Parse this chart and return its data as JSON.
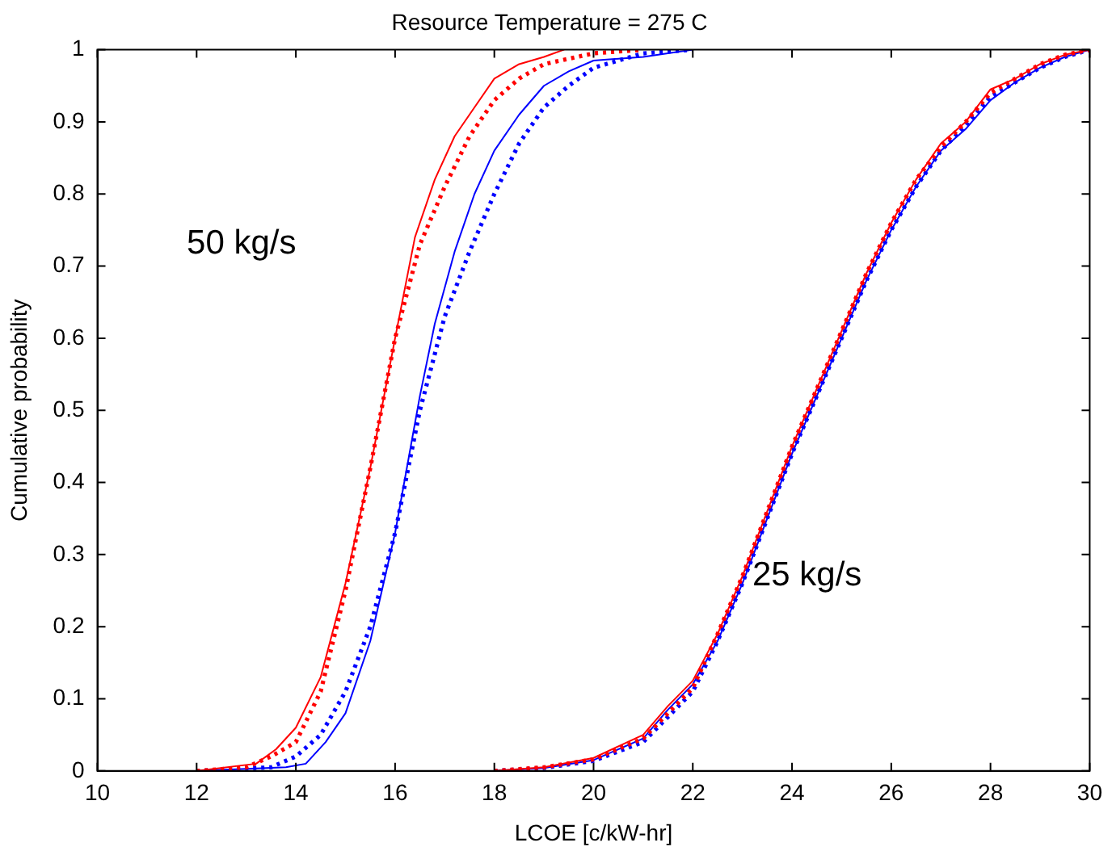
{
  "chart_data": {
    "type": "line",
    "title": "Resource Temperature = 275 C",
    "xlabel": "LCOE [c/kW-hr]",
    "ylabel": "Cumulative probability",
    "xlim": [
      10,
      30
    ],
    "xticks": [
      10,
      12,
      14,
      16,
      18,
      20,
      22,
      24,
      26,
      28,
      30
    ],
    "ylim": [
      0,
      1
    ],
    "yticks": [
      0,
      0.1,
      0.2,
      0.3,
      0.4,
      0.5,
      0.6,
      0.7,
      0.8,
      0.9,
      1
    ],
    "grid": false,
    "legend": false,
    "marker": "none",
    "annotations": [
      "50 kg/s",
      "25 kg/s"
    ],
    "series": [
      {
        "color": "#ff0000",
        "line_style": "solid",
        "x": [
          12,
          13.2,
          13.6,
          14,
          14.5,
          15,
          15.5,
          16,
          16.4,
          16.8,
          17.2,
          17.6,
          18,
          18.5,
          19,
          19.4
        ],
        "values": [
          0,
          0.01,
          0.03,
          0.06,
          0.13,
          0.26,
          0.42,
          0.6,
          0.74,
          0.82,
          0.88,
          0.92,
          0.96,
          0.98,
          0.99,
          1
        ]
      },
      {
        "color": "#ff0000",
        "line_style": "dotted",
        "x": [
          12,
          13,
          13.5,
          14,
          14.5,
          15,
          15.5,
          16,
          16.5,
          17,
          17.5,
          18,
          18.5,
          19,
          20,
          21
        ],
        "values": [
          0,
          0.005,
          0.02,
          0.04,
          0.11,
          0.25,
          0.42,
          0.6,
          0.73,
          0.81,
          0.88,
          0.93,
          0.96,
          0.98,
          0.995,
          1
        ]
      },
      {
        "color": "#0000ff",
        "line_style": "solid",
        "x": [
          12,
          13.8,
          14.2,
          14.6,
          15,
          15.5,
          16,
          16.5,
          16.8,
          17.2,
          17.6,
          18,
          18.5,
          19,
          19.5,
          20,
          21,
          21.5,
          22
        ],
        "values": [
          0,
          0.005,
          0.01,
          0.04,
          0.08,
          0.18,
          0.33,
          0.52,
          0.62,
          0.72,
          0.8,
          0.86,
          0.91,
          0.95,
          0.97,
          0.985,
          0.99,
          0.995,
          1
        ]
      },
      {
        "color": "#0000ff",
        "line_style": "dotted",
        "x": [
          12,
          13.5,
          14,
          14.5,
          15,
          15.5,
          16,
          16.5,
          17,
          17.5,
          18,
          18.5,
          19,
          19.5,
          20,
          21,
          22
        ],
        "values": [
          0,
          0.005,
          0.02,
          0.05,
          0.11,
          0.2,
          0.33,
          0.5,
          0.63,
          0.72,
          0.8,
          0.87,
          0.92,
          0.95,
          0.975,
          0.995,
          1
        ]
      },
      {
        "color": "#ff0000",
        "line_style": "solid",
        "x": [
          18,
          19,
          20,
          21,
          21.5,
          22,
          22.5,
          23,
          23.5,
          24,
          24.5,
          25,
          25.5,
          26,
          26.5,
          27,
          27.5,
          28,
          28.5,
          29,
          29.5,
          30
        ],
        "values": [
          0,
          0.005,
          0.018,
          0.05,
          0.09,
          0.125,
          0.19,
          0.27,
          0.36,
          0.45,
          0.53,
          0.61,
          0.69,
          0.76,
          0.82,
          0.87,
          0.9,
          0.945,
          0.96,
          0.98,
          0.993,
          1
        ]
      },
      {
        "color": "#ff0000",
        "line_style": "dotted",
        "x": [
          18,
          19,
          20,
          21,
          21.5,
          22,
          22.5,
          23,
          23.5,
          24,
          24.5,
          25,
          25.5,
          26,
          26.5,
          27,
          27.5,
          28,
          28.5,
          29,
          29.5,
          30
        ],
        "values": [
          0,
          0.005,
          0.016,
          0.045,
          0.08,
          0.115,
          0.19,
          0.27,
          0.36,
          0.45,
          0.53,
          0.61,
          0.69,
          0.76,
          0.82,
          0.865,
          0.9,
          0.94,
          0.96,
          0.98,
          0.993,
          1
        ]
      },
      {
        "color": "#0000ff",
        "line_style": "solid",
        "x": [
          18,
          19,
          20,
          21,
          21.5,
          22,
          22.5,
          23,
          23.5,
          24,
          24.5,
          25,
          25.5,
          26,
          26.5,
          27,
          27.5,
          28,
          28.5,
          29,
          29.5,
          30
        ],
        "values": [
          0,
          0.004,
          0.015,
          0.045,
          0.085,
          0.12,
          0.18,
          0.26,
          0.35,
          0.44,
          0.52,
          0.6,
          0.68,
          0.75,
          0.81,
          0.86,
          0.89,
          0.93,
          0.955,
          0.975,
          0.99,
          1
        ]
      },
      {
        "color": "#0000ff",
        "line_style": "dotted",
        "x": [
          18,
          19,
          20,
          21,
          21.5,
          22,
          22.5,
          23,
          23.5,
          24,
          24.5,
          25,
          25.5,
          26,
          26.5,
          27,
          27.5,
          28,
          28.5,
          29,
          29.5,
          30
        ],
        "values": [
          0,
          0.004,
          0.014,
          0.04,
          0.075,
          0.11,
          0.18,
          0.26,
          0.35,
          0.44,
          0.52,
          0.6,
          0.68,
          0.75,
          0.81,
          0.86,
          0.895,
          0.935,
          0.955,
          0.975,
          0.99,
          1
        ]
      }
    ]
  }
}
